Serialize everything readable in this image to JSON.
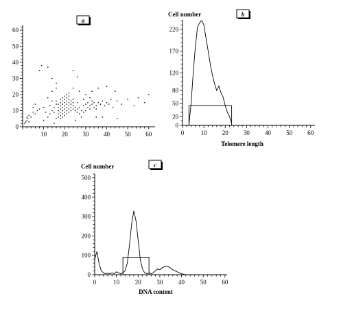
{
  "chart_data": [
    {
      "panel": "a",
      "type": "scatter",
      "x_ticks": [
        10,
        20,
        30,
        40,
        50,
        60
      ],
      "y_ticks": [
        0,
        10,
        20,
        30,
        40,
        50,
        60
      ],
      "xlim": [
        0,
        63
      ],
      "ylim": [
        0,
        63
      ],
      "points": [
        [
          1,
          2
        ],
        [
          1.5,
          3
        ],
        [
          2,
          4
        ],
        [
          2.5,
          5
        ],
        [
          3,
          3
        ],
        [
          2,
          6
        ],
        [
          3,
          7
        ],
        [
          4,
          6
        ],
        [
          5,
          9
        ],
        [
          6,
          8
        ],
        [
          5,
          12
        ],
        [
          7,
          10
        ],
        [
          8,
          11
        ],
        [
          6,
          14
        ],
        [
          10,
          12
        ],
        [
          11,
          9
        ],
        [
          12,
          6
        ],
        [
          13,
          8
        ],
        [
          14,
          10
        ],
        [
          15,
          12
        ],
        [
          16,
          14
        ],
        [
          16,
          5
        ],
        [
          17,
          6
        ],
        [
          17,
          8
        ],
        [
          17,
          10
        ],
        [
          17,
          12
        ],
        [
          17,
          14
        ],
        [
          18,
          5
        ],
        [
          18,
          7
        ],
        [
          18,
          9
        ],
        [
          18,
          11
        ],
        [
          18,
          13
        ],
        [
          18,
          15
        ],
        [
          18,
          17
        ],
        [
          19,
          6
        ],
        [
          19,
          8
        ],
        [
          19,
          10
        ],
        [
          19,
          12
        ],
        [
          19,
          14
        ],
        [
          19,
          16
        ],
        [
          19,
          18
        ],
        [
          20,
          7
        ],
        [
          20,
          9
        ],
        [
          20,
          11
        ],
        [
          20,
          13
        ],
        [
          20,
          15
        ],
        [
          20,
          17
        ],
        [
          20,
          19
        ],
        [
          21,
          8
        ],
        [
          21,
          10
        ],
        [
          21,
          12
        ],
        [
          21,
          14
        ],
        [
          21,
          16
        ],
        [
          21,
          18
        ],
        [
          21,
          20
        ],
        [
          22,
          9
        ],
        [
          22,
          11
        ],
        [
          22,
          13
        ],
        [
          22,
          15
        ],
        [
          22,
          17
        ],
        [
          22,
          19
        ],
        [
          22,
          21
        ],
        [
          23,
          10
        ],
        [
          23,
          12
        ],
        [
          23,
          14
        ],
        [
          23,
          16
        ],
        [
          24,
          11
        ],
        [
          24,
          13
        ],
        [
          24,
          15
        ],
        [
          25,
          10
        ],
        [
          25,
          12
        ],
        [
          26,
          11
        ],
        [
          26,
          9
        ],
        [
          27,
          8
        ],
        [
          27,
          12
        ],
        [
          28,
          10
        ],
        [
          29,
          9
        ],
        [
          29,
          13
        ],
        [
          30,
          10
        ],
        [
          30,
          14
        ],
        [
          31,
          12
        ],
        [
          31,
          15
        ],
        [
          32,
          11
        ],
        [
          32,
          13
        ],
        [
          33,
          14
        ],
        [
          33,
          16
        ],
        [
          34,
          12
        ],
        [
          34,
          15
        ],
        [
          35,
          13
        ],
        [
          35,
          11
        ],
        [
          36,
          15
        ],
        [
          37,
          14
        ],
        [
          38,
          16
        ],
        [
          39,
          13
        ],
        [
          40,
          15
        ],
        [
          41,
          14
        ],
        [
          42,
          17
        ],
        [
          43,
          12
        ],
        [
          45,
          16
        ],
        [
          47,
          14
        ],
        [
          50,
          17
        ],
        [
          53,
          13
        ],
        [
          55,
          18
        ],
        [
          58,
          15
        ],
        [
          60,
          20
        ],
        [
          8,
          35
        ],
        [
          9,
          38
        ],
        [
          12,
          37
        ],
        [
          14,
          30
        ],
        [
          16,
          27
        ],
        [
          24,
          35
        ],
        [
          26,
          31
        ],
        [
          15,
          2
        ],
        [
          25,
          4
        ],
        [
          35,
          6
        ],
        [
          45,
          5
        ],
        [
          12,
          18
        ],
        [
          14,
          22
        ],
        [
          16,
          24
        ],
        [
          24,
          24
        ],
        [
          27,
          22
        ],
        [
          30,
          20
        ],
        [
          33,
          22
        ],
        [
          36,
          24
        ],
        [
          40,
          25
        ],
        [
          44,
          22
        ],
        [
          38,
          6
        ],
        [
          10,
          4
        ],
        [
          28,
          6
        ],
        [
          16,
          16
        ],
        [
          24,
          17
        ],
        [
          26,
          15
        ],
        [
          29,
          17
        ],
        [
          32,
          18
        ],
        [
          14,
          16
        ],
        [
          13,
          13
        ],
        [
          15,
          9
        ]
      ]
    },
    {
      "panel": "b",
      "type": "line",
      "ylabel": "Cell number",
      "xlabel": "Telomere length",
      "x_ticks": [
        0,
        10,
        20,
        30,
        40,
        50,
        60
      ],
      "y_ticks": [
        0,
        20,
        50,
        80,
        120,
        170,
        220
      ],
      "xlim": [
        0,
        62
      ],
      "ylim": [
        0,
        240
      ],
      "x": [
        3,
        4,
        5,
        6,
        7,
        8,
        9,
        10,
        11,
        12,
        13,
        14,
        15,
        16,
        17,
        18,
        19,
        20,
        21,
        22,
        23
      ],
      "y": [
        0,
        50,
        120,
        180,
        225,
        235,
        240,
        230,
        200,
        170,
        140,
        115,
        95,
        80,
        90,
        75,
        65,
        45,
        30,
        20,
        5
      ],
      "gate": {
        "x_start": 3,
        "x_end": 23,
        "level": 45
      }
    },
    {
      "panel": "c",
      "type": "line",
      "ylabel": "Cell number",
      "xlabel": "DNA content",
      "x_ticks": [
        0,
        10,
        20,
        30,
        40,
        50,
        60
      ],
      "y_ticks": [
        0,
        100,
        200,
        300,
        400,
        500
      ],
      "xlim": [
        0,
        61
      ],
      "ylim": [
        0,
        520
      ],
      "x": [
        0,
        1,
        2,
        3,
        4,
        5,
        6,
        7,
        8,
        9,
        10,
        11,
        12,
        13,
        14,
        15,
        16,
        17,
        18,
        19,
        20,
        21,
        22,
        23,
        24,
        25,
        26,
        27,
        28,
        29,
        30,
        31,
        32,
        33,
        34,
        35,
        36,
        37,
        38,
        39,
        40,
        41,
        42
      ],
      "y": [
        80,
        120,
        60,
        20,
        10,
        5,
        8,
        5,
        10,
        5,
        15,
        10,
        5,
        10,
        20,
        60,
        150,
        260,
        330,
        280,
        180,
        80,
        30,
        10,
        5,
        10,
        5,
        10,
        20,
        30,
        25,
        35,
        40,
        45,
        40,
        35,
        25,
        20,
        15,
        10,
        5,
        2,
        0
      ],
      "gate": {
        "x_start": 13,
        "x_end": 25,
        "level": 90
      }
    }
  ],
  "panels": {
    "a": {
      "label": "a"
    },
    "b": {
      "label": "b",
      "ylabel": "Cell number",
      "xlabel": "Telomere length"
    },
    "c": {
      "label": "c",
      "ylabel": "Cell number",
      "xlabel": "DNA content"
    }
  }
}
